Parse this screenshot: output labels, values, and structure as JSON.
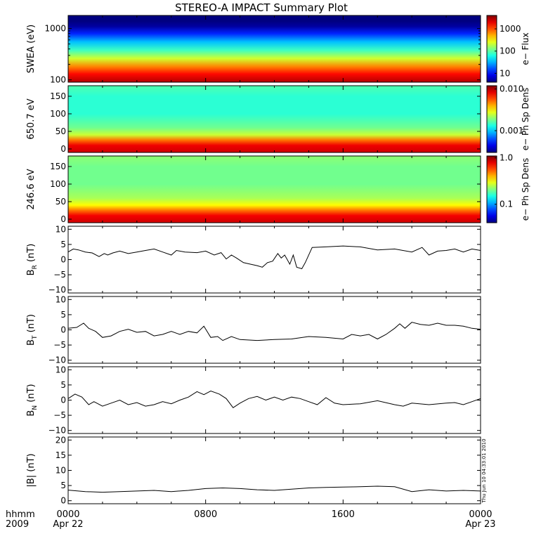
{
  "title": "STEREO-A IMPACT Summary Plot",
  "timestamp": "Thu Jun 10 04:33:01 2010",
  "time_axis": {
    "label_top": "hhmm",
    "label_bottom": "2009",
    "ticks": [
      {
        "hour": 0,
        "top": "0000",
        "bottom": "Apr 22"
      },
      {
        "hour": 8,
        "top": "0800",
        "bottom": ""
      },
      {
        "hour": 16,
        "top": "1600",
        "bottom": ""
      },
      {
        "hour": 24,
        "top": "0000",
        "bottom": "Apr 23"
      }
    ],
    "range_hours": [
      0,
      24
    ]
  },
  "colors": {
    "axes": "#000000",
    "trace": "#000000",
    "background": "#ffffff"
  },
  "chart_data": [
    {
      "type": "heatmap",
      "ylabel": "SWEA (eV)",
      "yscale": "log",
      "ylim": [
        90,
        1800
      ],
      "yticks": [
        {
          "v": 100,
          "l": "100"
        },
        {
          "v": 1000,
          "l": "1000"
        }
      ],
      "colorbar_label": "e− Flux",
      "colorbar_scale": "log",
      "colorbar_range": [
        4,
        4000
      ],
      "colorbar_ticks": [
        {
          "v": 10,
          "l": "10"
        },
        {
          "v": 100,
          "l": "100"
        },
        {
          "v": 1000,
          "l": "1000"
        }
      ],
      "profile": {
        "y": [
          90,
          130,
          180,
          260,
          380,
          550,
          800,
          1100,
          1400,
          1800
        ],
        "z": [
          2800,
          1600,
          700,
          220,
          80,
          35,
          12,
          5,
          4,
          4
        ]
      }
    },
    {
      "type": "heatmap",
      "ylabel": "650.7 eV",
      "ylim": [
        -10,
        180
      ],
      "yticks": [
        {
          "v": 0,
          "l": "0"
        },
        {
          "v": 50,
          "l": "50"
        },
        {
          "v": 100,
          "l": "100"
        },
        {
          "v": 150,
          "l": "150"
        }
      ],
      "colorbar_label": "e− Ph Sp Dens",
      "colorbar_scale": "log",
      "colorbar_range": [
        0.0003,
        0.012
      ],
      "colorbar_ticks": [
        {
          "v": 0.001,
          "l": "0.001"
        },
        {
          "v": 0.01,
          "l": "0.010"
        }
      ],
      "profile": {
        "y": [
          -10,
          10,
          25,
          40,
          60,
          100,
          150,
          180
        ],
        "z": [
          0.009,
          0.008,
          0.005,
          0.0025,
          0.0018,
          0.0014,
          0.0014,
          0.0016
        ]
      }
    },
    {
      "type": "heatmap",
      "ylabel": "246.6 eV",
      "ylim": [
        -10,
        180
      ],
      "yticks": [
        {
          "v": 0,
          "l": "0"
        },
        {
          "v": 50,
          "l": "50"
        },
        {
          "v": 100,
          "l": "100"
        },
        {
          "v": 150,
          "l": "150"
        }
      ],
      "colorbar_label": "e− Ph Sp Dens",
      "colorbar_scale": "log",
      "colorbar_range": [
        0.04,
        1.1
      ],
      "colorbar_ticks": [
        {
          "v": 0.1,
          "l": "0.1"
        },
        {
          "v": 1,
          "l": "1.0"
        }
      ],
      "profile": {
        "y": [
          -10,
          10,
          25,
          40,
          60,
          100,
          150,
          180
        ],
        "z": [
          0.85,
          0.75,
          0.5,
          0.32,
          0.24,
          0.2,
          0.2,
          0.22
        ]
      }
    },
    {
      "type": "line",
      "ylabel_main": "B",
      "ylabel_sub": "R",
      "ylabel_unit": " (nT)",
      "ylim": [
        -11,
        11
      ],
      "yticks": [
        {
          "v": 10,
          "l": "10"
        },
        {
          "v": 5,
          "l": "5"
        },
        {
          "v": 0,
          "l": "0"
        },
        {
          "v": -5,
          "l": "−5"
        },
        {
          "v": -10,
          "l": "−10"
        }
      ],
      "x": [
        0,
        0.3,
        0.6,
        1,
        1.4,
        1.8,
        2.1,
        2.3,
        2.6,
        3,
        3.5,
        4,
        4.5,
        5,
        5.5,
        6,
        6.3,
        6.8,
        7.5,
        8,
        8.5,
        8.9,
        9.2,
        9.5,
        9.8,
        10.2,
        10.6,
        11,
        11.3,
        11.6,
        11.9,
        12.2,
        12.4,
        12.6,
        12.9,
        13.1,
        13.3,
        13.6,
        13.8,
        14.2,
        15,
        16,
        17,
        18,
        19,
        20,
        20.6,
        21,
        21.5,
        22,
        22.5,
        23,
        23.5,
        24
      ],
      "y": [
        2.5,
        3.5,
        3.2,
        2.5,
        2.2,
        1,
        2,
        1.5,
        2.2,
        2.8,
        2,
        2.5,
        3,
        3.5,
        2.5,
        1.5,
        3,
        2.5,
        2.3,
        2.8,
        1.5,
        2.3,
        0.2,
        1.5,
        0.5,
        -1,
        -1.5,
        -2,
        -2.5,
        -1,
        -0.5,
        2,
        0.5,
        1.5,
        -1.5,
        1.5,
        -2.5,
        -3,
        -1,
        4,
        4.2,
        4.5,
        4.2,
        3.2,
        3.5,
        2.5,
        4,
        1.5,
        2.8,
        3,
        3.5,
        2.5,
        3.5,
        3
      ]
    },
    {
      "type": "line",
      "ylabel_main": "B",
      "ylabel_sub": "T",
      "ylabel_unit": " (nT)",
      "ylim": [
        -11,
        11
      ],
      "yticks": [
        {
          "v": 10,
          "l": "10"
        },
        {
          "v": 5,
          "l": "5"
        },
        {
          "v": 0,
          "l": "0"
        },
        {
          "v": -5,
          "l": "−5"
        },
        {
          "v": -10,
          "l": "−10"
        }
      ],
      "x": [
        0,
        0.5,
        0.9,
        1.2,
        1.6,
        2,
        2.5,
        3,
        3.5,
        4,
        4.5,
        5,
        5.5,
        6,
        6.5,
        7,
        7.5,
        7.9,
        8.3,
        8.7,
        9,
        9.5,
        10,
        11,
        12,
        13,
        14,
        15,
        16,
        16.5,
        17,
        17.5,
        18,
        18.5,
        19,
        19.3,
        19.6,
        20,
        20.5,
        21,
        21.5,
        22,
        22.5,
        23,
        23.5,
        24
      ],
      "y": [
        0.5,
        0.8,
        2.2,
        0.5,
        -0.5,
        -2.5,
        -2,
        -0.5,
        0.2,
        -0.8,
        -0.5,
        -2,
        -1.5,
        -0.5,
        -1.5,
        -0.5,
        -1,
        1.2,
        -2.5,
        -2.2,
        -3.5,
        -2.2,
        -3.2,
        -3.5,
        -3.2,
        -3,
        -2.2,
        -2.5,
        -3,
        -1.5,
        -2,
        -1.5,
        -3,
        -1.5,
        0.5,
        2,
        0.5,
        2.5,
        1.8,
        1.5,
        2.2,
        1.5,
        1.5,
        1.2,
        0.5,
        0.2
      ]
    },
    {
      "type": "line",
      "ylabel_main": "B",
      "ylabel_sub": "N",
      "ylabel_unit": " (nT)",
      "ylim": [
        -11,
        11
      ],
      "yticks": [
        {
          "v": 10,
          "l": "10"
        },
        {
          "v": 5,
          "l": "5"
        },
        {
          "v": 0,
          "l": "0"
        },
        {
          "v": -5,
          "l": "−5"
        },
        {
          "v": -10,
          "l": "−10"
        }
      ],
      "x": [
        0,
        0.4,
        0.8,
        1.2,
        1.5,
        2,
        2.5,
        3,
        3.5,
        4,
        4.5,
        5,
        5.5,
        6,
        6.5,
        7,
        7.5,
        7.9,
        8.3,
        8.8,
        9.2,
        9.6,
        10,
        10.5,
        11,
        11.5,
        12,
        12.5,
        13,
        13.5,
        14,
        14.5,
        15,
        15.5,
        16,
        17,
        18,
        19,
        19.5,
        20,
        21,
        22,
        22.5,
        23,
        23.5,
        24
      ],
      "y": [
        0.5,
        2,
        1,
        -1.5,
        -0.5,
        -2,
        -1,
        0,
        -1.5,
        -0.8,
        -2,
        -1.5,
        -0.5,
        -1.2,
        0,
        1,
        2.8,
        1.8,
        3,
        2,
        0.5,
        -2.5,
        -1,
        0.5,
        1.2,
        0,
        1,
        0,
        1,
        0.5,
        -0.5,
        -1.5,
        0.8,
        -1,
        -1.5,
        -1.2,
        -0.2,
        -1.5,
        -2,
        -1,
        -1.5,
        -1,
        -0.8,
        -1.5,
        -0.5,
        0.5
      ]
    },
    {
      "type": "line",
      "ylabel_main": "|B|",
      "ylabel_sub": "",
      "ylabel_unit": " (nT)",
      "ylim": [
        -1,
        21
      ],
      "yticks": [
        {
          "v": 20,
          "l": "20"
        },
        {
          "v": 15,
          "l": "15"
        },
        {
          "v": 10,
          "l": "10"
        },
        {
          "v": 5,
          "l": "5"
        },
        {
          "v": 0,
          "l": "0"
        }
      ],
      "x": [
        0,
        1,
        2,
        3,
        4,
        5,
        6,
        7,
        8,
        9,
        10,
        11,
        12,
        13,
        14,
        15,
        16,
        17,
        18,
        19,
        20,
        21,
        22,
        23,
        24
      ],
      "y": [
        3.5,
        3,
        2.8,
        3,
        3.2,
        3.4,
        3,
        3.4,
        4,
        4.2,
        4,
        3.6,
        3.4,
        3.8,
        4.2,
        4.4,
        4.5,
        4.6,
        4.8,
        4.6,
        3,
        3.6,
        3.2,
        3.4,
        3.2
      ]
    }
  ]
}
